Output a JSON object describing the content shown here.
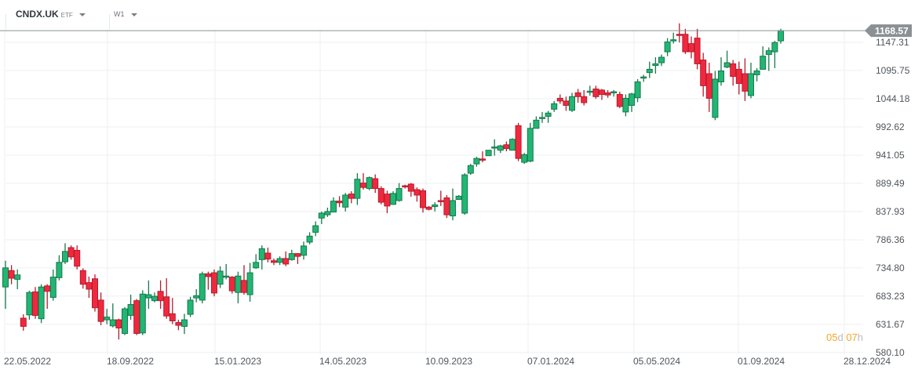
{
  "header": {
    "symbol": "CNDX.UK",
    "symbol_type": "ETF",
    "timeframe": "W1"
  },
  "current_price": {
    "label": "1168.57",
    "value": 1168.57
  },
  "countdown": {
    "days": "05",
    "days_unit": "d",
    "hours": "07",
    "hours_unit": "h"
  },
  "colors": {
    "up_body": "#22b573",
    "up_border": "#177a4c",
    "down_body": "#f0283e",
    "down_border": "#b51d2f",
    "grid": "#eeeff1",
    "price_line": "#8a9094",
    "price_tag": "#8a9094"
  },
  "chart_data": {
    "type": "candlestick",
    "title": "CNDX.UK ETF W1",
    "xlabel": "",
    "ylabel": "",
    "y_ticks": [
      "1147.31",
      "1095.75",
      "1044.18",
      "992.62",
      "941.05",
      "889.49",
      "837.93",
      "786.36",
      "734.80",
      "683.23",
      "631.67",
      "580.10"
    ],
    "x_ticks": [
      "22.05.2022",
      "18.09.2022",
      "15.01.2023",
      "14.05.2023",
      "10.09.2023",
      "07.01.2024",
      "05.05.2024",
      "01.09.2024",
      "28.12.2024"
    ],
    "ylim": [
      575,
      1170
    ],
    "grid": true,
    "candles": [
      [
        700,
        735,
        660,
        748
      ],
      [
        730,
        716,
        705,
        740
      ],
      [
        714,
        722,
        696,
        732
      ],
      [
        643,
        628,
        620,
        650
      ],
      [
        649,
        690,
        640,
        693
      ],
      [
        691,
        648,
        642,
        700
      ],
      [
        642,
        700,
        634,
        705
      ],
      [
        702,
        692,
        660,
        705
      ],
      [
        681,
        718,
        675,
        732
      ],
      [
        717,
        745,
        712,
        758
      ],
      [
        746,
        765,
        742,
        780
      ],
      [
        772,
        755,
        750,
        776
      ],
      [
        767,
        738,
        732,
        776
      ],
      [
        730,
        705,
        697,
        734
      ],
      [
        708,
        696,
        680,
        719
      ],
      [
        715,
        662,
        655,
        723
      ],
      [
        676,
        637,
        630,
        690
      ],
      [
        640,
        645,
        632,
        660
      ],
      [
        629,
        640,
        626,
        670
      ],
      [
        640,
        625,
        604,
        642
      ],
      [
        615,
        660,
        612,
        663
      ],
      [
        648,
        668,
        640,
        686
      ],
      [
        675,
        615,
        612,
        678
      ],
      [
        616,
        687,
        612,
        694
      ],
      [
        680,
        686,
        660,
        712
      ],
      [
        675,
        683,
        672,
        690
      ],
      [
        692,
        675,
        660,
        712
      ],
      [
        682,
        647,
        642,
        716
      ],
      [
        651,
        638,
        632,
        680
      ],
      [
        635,
        630,
        621,
        640
      ],
      [
        628,
        640,
        614,
        651
      ],
      [
        650,
        676,
        645,
        682
      ],
      [
        680,
        684,
        672,
        696
      ],
      [
        676,
        724,
        670,
        728
      ],
      [
        724,
        719,
        695,
        728
      ],
      [
        726,
        689,
        683,
        732
      ],
      [
        705,
        729,
        698,
        738
      ],
      [
        720,
        720,
        714,
        742
      ],
      [
        718,
        693,
        688,
        720
      ],
      [
        690,
        720,
        670,
        728
      ],
      [
        712,
        690,
        686,
        740
      ],
      [
        686,
        726,
        673,
        744
      ],
      [
        735,
        745,
        733,
        760
      ],
      [
        750,
        770,
        732,
        776
      ],
      [
        762,
        751,
        745,
        772
      ],
      [
        748,
        745,
        740,
        752
      ],
      [
        745,
        752,
        740,
        756
      ],
      [
        752,
        742,
        738,
        765
      ],
      [
        750,
        761,
        748,
        768
      ],
      [
        761,
        756,
        742,
        762
      ],
      [
        758,
        775,
        750,
        783
      ],
      [
        782,
        793,
        778,
        800
      ],
      [
        800,
        812,
        793,
        820
      ],
      [
        826,
        835,
        815,
        838
      ],
      [
        832,
        838,
        828,
        845
      ],
      [
        837,
        857,
        838,
        864
      ],
      [
        857,
        854,
        846,
        866
      ],
      [
        846,
        868,
        838,
        872
      ],
      [
        870,
        862,
        853,
        875
      ],
      [
        862,
        897,
        850,
        908
      ],
      [
        890,
        882,
        878,
        908
      ],
      [
        880,
        900,
        877,
        902
      ],
      [
        898,
        880,
        872,
        906
      ],
      [
        880,
        855,
        851,
        884
      ],
      [
        870,
        848,
        835,
        876
      ],
      [
        851,
        871,
        850,
        875
      ],
      [
        858,
        880,
        856,
        890
      ],
      [
        885,
        884,
        880,
        887
      ],
      [
        888,
        875,
        865,
        890
      ],
      [
        878,
        868,
        856,
        882
      ],
      [
        876,
        845,
        836,
        880
      ],
      [
        846,
        842,
        840,
        848
      ],
      [
        847,
        850,
        838,
        855
      ],
      [
        858,
        856,
        848,
        876
      ],
      [
        863,
        832,
        826,
        868
      ],
      [
        830,
        858,
        822,
        880
      ],
      [
        860,
        866,
        860,
        868
      ],
      [
        835,
        905,
        832,
        908
      ],
      [
        908,
        922,
        905,
        925
      ],
      [
        925,
        935,
        920,
        938
      ],
      [
        934,
        932,
        928,
        948
      ],
      [
        940,
        950,
        940,
        950
      ],
      [
        955,
        956,
        940,
        970
      ],
      [
        950,
        958,
        945,
        960
      ],
      [
        960,
        953,
        948,
        966
      ],
      [
        950,
        970,
        950,
        972
      ],
      [
        995,
        935,
        930,
        1000
      ],
      [
        928,
        942,
        925,
        945
      ],
      [
        930,
        990,
        928,
        1000
      ],
      [
        990,
        1005,
        990,
        1012
      ],
      [
        1010,
        1010,
        1000,
        1020
      ],
      [
        1012,
        1018,
        1000,
        1022
      ],
      [
        1025,
        1035,
        1020,
        1040
      ],
      [
        1045,
        1040,
        1035,
        1052
      ],
      [
        1040,
        1032,
        1022,
        1048
      ],
      [
        1023,
        1048,
        1020,
        1055
      ],
      [
        1055,
        1048,
        1037,
        1062
      ],
      [
        1048,
        1037,
        1032,
        1060
      ],
      [
        1056,
        1058,
        1050,
        1068
      ],
      [
        1062,
        1048,
        1044,
        1068
      ],
      [
        1060,
        1052,
        1042,
        1062
      ],
      [
        1055,
        1051,
        1046,
        1060
      ],
      [
        1055,
        1057,
        1048,
        1060
      ],
      [
        1052,
        1030,
        1027,
        1057
      ],
      [
        1020,
        1045,
        1012,
        1052
      ],
      [
        1032,
        1053,
        1020,
        1055
      ],
      [
        1046,
        1075,
        1038,
        1080
      ],
      [
        1082,
        1084,
        1075,
        1088
      ],
      [
        1092,
        1098,
        1082,
        1112
      ],
      [
        1105,
        1108,
        1090,
        1120
      ],
      [
        1110,
        1120,
        1104,
        1125
      ],
      [
        1130,
        1148,
        1122,
        1155
      ],
      [
        1150,
        1152,
        1145,
        1165
      ],
      [
        1162,
        1160,
        1147,
        1182
      ],
      [
        1162,
        1130,
        1126,
        1172
      ],
      [
        1145,
        1130,
        1118,
        1158
      ],
      [
        1155,
        1108,
        1098,
        1172
      ],
      [
        1115,
        1068,
        1048,
        1128
      ],
      [
        1090,
        1045,
        1020,
        1110
      ],
      [
        1010,
        1080,
        1005,
        1095
      ],
      [
        1075,
        1095,
        1068,
        1120
      ],
      [
        1102,
        1110,
        1100,
        1132
      ],
      [
        1108,
        1085,
        1068,
        1115
      ],
      [
        1098,
        1072,
        1052,
        1112
      ],
      [
        1090,
        1058,
        1040,
        1118
      ],
      [
        1050,
        1090,
        1045,
        1110
      ],
      [
        1088,
        1095,
        1076,
        1100
      ],
      [
        1098,
        1122,
        1098,
        1140
      ],
      [
        1125,
        1132,
        1095,
        1138
      ],
      [
        1130,
        1147,
        1100,
        1150
      ],
      [
        1150,
        1168.57,
        1145,
        1172
      ]
    ]
  },
  "x_start": 7,
  "x_step": 7.6
}
